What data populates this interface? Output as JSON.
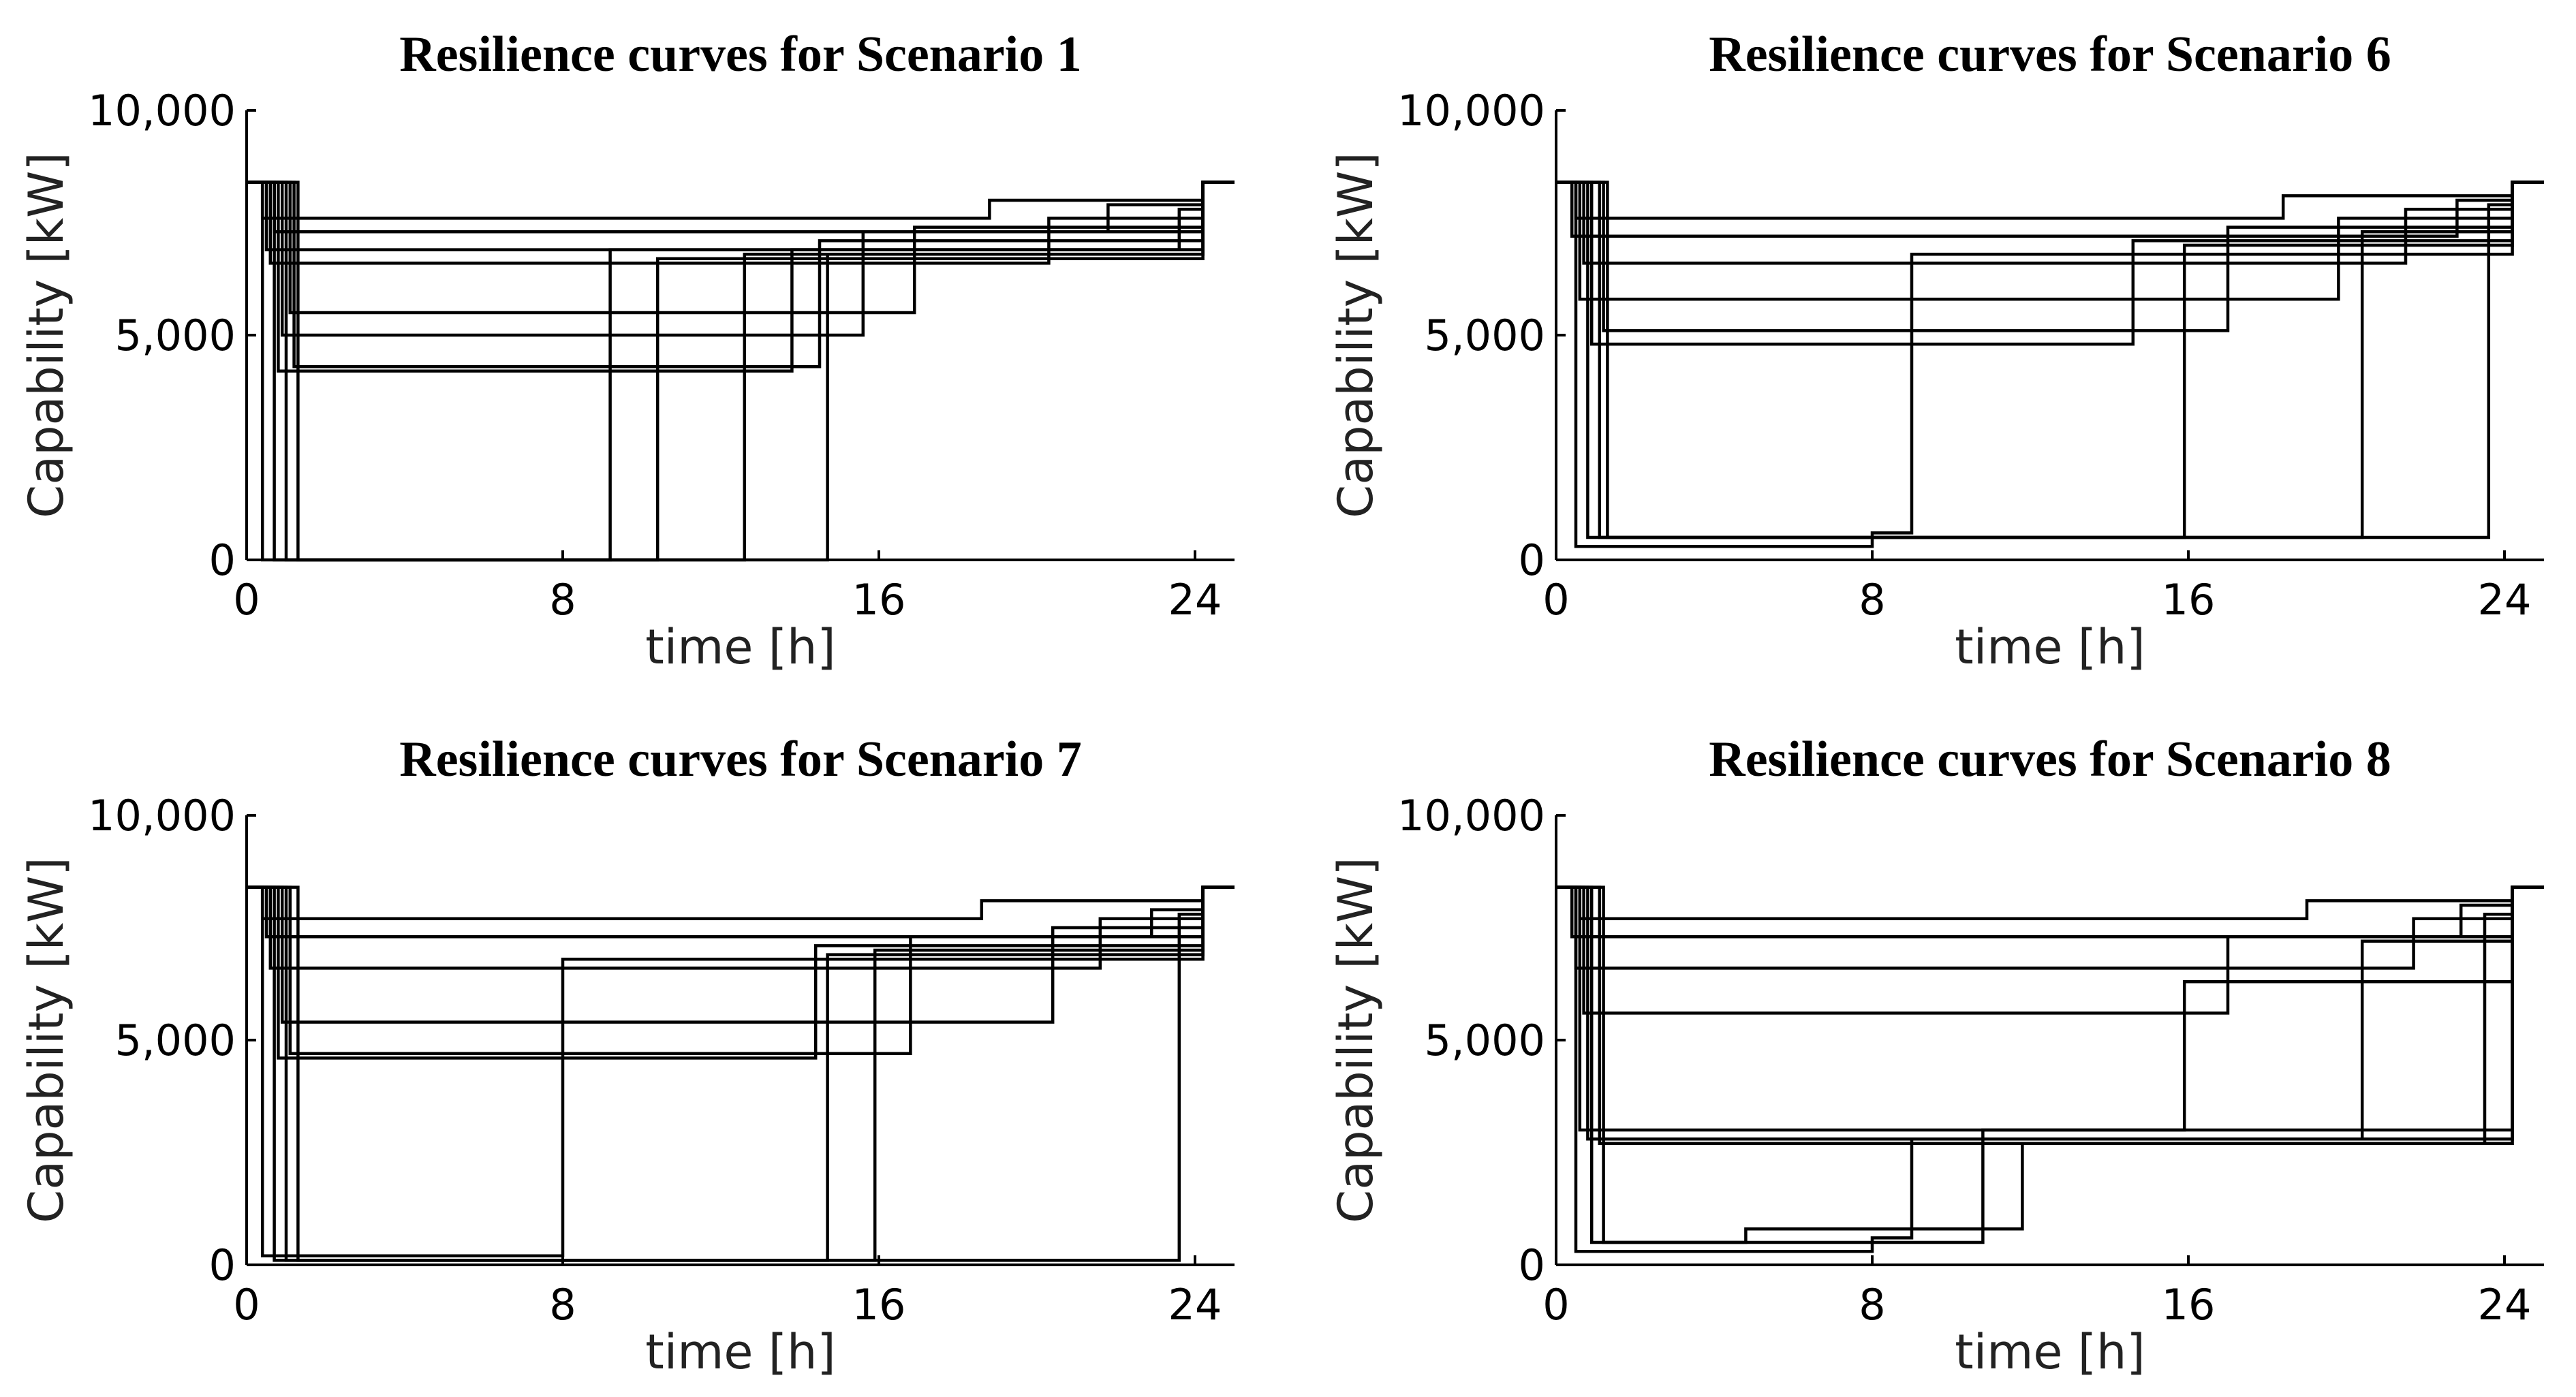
{
  "chart_data": [
    {
      "type": "line",
      "title": "Resilience curves for Scenario 1",
      "xlabel": "time [h]",
      "ylabel": "Capability [kW]",
      "xlim": [
        0,
        25
      ],
      "ylim": [
        0,
        10000
      ],
      "xticks": [
        0,
        8,
        16,
        24
      ],
      "xtick_labels": [
        "0",
        "8",
        "16",
        "24"
      ],
      "yticks": [
        0,
        5000,
        10000
      ],
      "ytick_labels": [
        "0",
        "5,000",
        "10,000"
      ],
      "grid": false,
      "nominal_capability_kw": 8400,
      "recovery_end_h": 24.2,
      "curves": [
        {
          "levels": [
            [
              0.4,
              0
            ],
            [
              14.7,
              6800
            ]
          ]
        },
        {
          "levels": [
            [
              0.7,
              0
            ],
            [
              9.2,
              6900
            ]
          ]
        },
        {
          "levels": [
            [
              1.0,
              0
            ],
            [
              10.4,
              6700
            ]
          ]
        },
        {
          "levels": [
            [
              1.3,
              0
            ],
            [
              12.6,
              6800
            ]
          ]
        },
        {
          "levels": [
            [
              0.8,
              4200
            ],
            [
              13.8,
              6900
            ]
          ]
        },
        {
          "levels": [
            [
              1.2,
              4300
            ],
            [
              14.5,
              7100
            ]
          ]
        },
        {
          "levels": [
            [
              0.9,
              5000
            ],
            [
              15.6,
              7300
            ]
          ]
        },
        {
          "levels": [
            [
              1.1,
              5500
            ],
            [
              16.9,
              7400
            ]
          ]
        },
        {
          "levels": [
            [
              0.6,
              6600
            ],
            [
              20.3,
              7600
            ]
          ]
        },
        {
          "levels": [
            [
              0.5,
              6900
            ],
            [
              23.6,
              7800
            ]
          ]
        },
        {
          "levels": [
            [
              0.7,
              7300
            ],
            [
              21.8,
              7900
            ]
          ]
        },
        {
          "levels": [
            [
              0.4,
              7600
            ],
            [
              18.8,
              8000
            ]
          ]
        }
      ]
    },
    {
      "type": "line",
      "title": "Resilience curves for Scenario 6",
      "xlabel": "time [h]",
      "ylabel": "Capability [kW]",
      "xlim": [
        0,
        25
      ],
      "ylim": [
        0,
        10000
      ],
      "xticks": [
        0,
        8,
        16,
        24
      ],
      "xtick_labels": [
        "0",
        "8",
        "16",
        "24"
      ],
      "yticks": [
        0,
        5000,
        10000
      ],
      "ytick_labels": [
        "0",
        "5,000",
        "10,000"
      ],
      "grid": false,
      "nominal_capability_kw": 8400,
      "recovery_end_h": 24.2,
      "curves": [
        {
          "levels": [
            [
              0.5,
              300
            ],
            [
              8.0,
              600
            ],
            [
              9.0,
              6800
            ]
          ]
        },
        {
          "levels": [
            [
              0.8,
              500
            ],
            [
              15.9,
              7000
            ]
          ]
        },
        {
          "levels": [
            [
              1.1,
              500
            ],
            [
              20.4,
              7300
            ]
          ]
        },
        {
          "levels": [
            [
              1.3,
              500
            ],
            [
              23.6,
              7900
            ]
          ]
        },
        {
          "levels": [
            [
              0.9,
              4800
            ],
            [
              14.6,
              7100
            ]
          ]
        },
        {
          "levels": [
            [
              1.2,
              5100
            ],
            [
              17.0,
              7400
            ]
          ]
        },
        {
          "levels": [
            [
              0.6,
              5800
            ],
            [
              19.8,
              7600
            ]
          ]
        },
        {
          "levels": [
            [
              0.7,
              6600
            ],
            [
              21.5,
              7800
            ]
          ]
        },
        {
          "levels": [
            [
              0.4,
              7200
            ],
            [
              22.8,
              8000
            ]
          ]
        },
        {
          "levels": [
            [
              0.5,
              7600
            ],
            [
              18.4,
              8100
            ]
          ]
        }
      ]
    },
    {
      "type": "line",
      "title": "Resilience curves for Scenario 7",
      "xlabel": "time [h]",
      "ylabel": "Capability [kW]",
      "xlim": [
        0,
        25
      ],
      "ylim": [
        0,
        10000
      ],
      "xticks": [
        0,
        8,
        16,
        24
      ],
      "xtick_labels": [
        "0",
        "8",
        "16",
        "24"
      ],
      "yticks": [
        0,
        5000,
        10000
      ],
      "ytick_labels": [
        "0",
        "5,000",
        "10,000"
      ],
      "grid": false,
      "nominal_capability_kw": 8400,
      "recovery_end_h": 24.2,
      "curves": [
        {
          "levels": [
            [
              0.4,
              200
            ],
            [
              8.0,
              6800
            ]
          ]
        },
        {
          "levels": [
            [
              0.7,
              100
            ],
            [
              14.7,
              6900
            ]
          ]
        },
        {
          "levels": [
            [
              1.0,
              100
            ],
            [
              15.9,
              7000
            ]
          ]
        },
        {
          "levels": [
            [
              1.3,
              100
            ],
            [
              23.6,
              7800
            ]
          ]
        },
        {
          "levels": [
            [
              0.8,
              4600
            ],
            [
              14.4,
              7100
            ]
          ]
        },
        {
          "levels": [
            [
              1.1,
              4700
            ],
            [
              16.8,
              7300
            ]
          ]
        },
        {
          "levels": [
            [
              0.9,
              5400
            ],
            [
              20.4,
              7500
            ]
          ]
        },
        {
          "levels": [
            [
              0.6,
              6600
            ],
            [
              21.6,
              7700
            ]
          ]
        },
        {
          "levels": [
            [
              0.5,
              7300
            ],
            [
              22.9,
              7900
            ]
          ]
        },
        {
          "levels": [
            [
              0.4,
              7700
            ],
            [
              18.6,
              8100
            ]
          ]
        }
      ]
    },
    {
      "type": "line",
      "title": "Resilience curves for Scenario 8",
      "xlabel": "time [h]",
      "ylabel": "Capability [kW]",
      "xlim": [
        0,
        25
      ],
      "ylim": [
        0,
        10000
      ],
      "xticks": [
        0,
        8,
        16,
        24
      ],
      "xtick_labels": [
        "0",
        "8",
        "16",
        "24"
      ],
      "yticks": [
        0,
        5000,
        10000
      ],
      "ytick_labels": [
        "0",
        "5,000",
        "10,000"
      ],
      "grid": false,
      "nominal_capability_kw": 8400,
      "recovery_end_h": 24.2,
      "curves": [
        {
          "levels": [
            [
              0.5,
              300
            ],
            [
              8.0,
              600
            ],
            [
              9.0,
              2800
            ]
          ]
        },
        {
          "levels": [
            [
              0.9,
              500
            ],
            [
              4.8,
              800
            ],
            [
              11.8,
              2700
            ]
          ]
        },
        {
          "levels": [
            [
              1.2,
              500
            ],
            [
              10.8,
              3000
            ]
          ]
        },
        {
          "levels": [
            [
              0.6,
              3000
            ],
            [
              15.9,
              6300
            ]
          ]
        },
        {
          "levels": [
            [
              0.8,
              2800
            ],
            [
              20.4,
              7200
            ]
          ]
        },
        {
          "levels": [
            [
              1.1,
              2700
            ],
            [
              23.5,
              7800
            ]
          ]
        },
        {
          "levels": [
            [
              0.7,
              5600
            ],
            [
              17.0,
              7300
            ]
          ]
        },
        {
          "levels": [
            [
              0.5,
              6600
            ],
            [
              21.7,
              7700
            ]
          ]
        },
        {
          "levels": [
            [
              0.4,
              7300
            ],
            [
              22.9,
              8000
            ]
          ]
        },
        {
          "levels": [
            [
              0.6,
              7700
            ],
            [
              19.0,
              8100
            ]
          ]
        }
      ]
    }
  ]
}
